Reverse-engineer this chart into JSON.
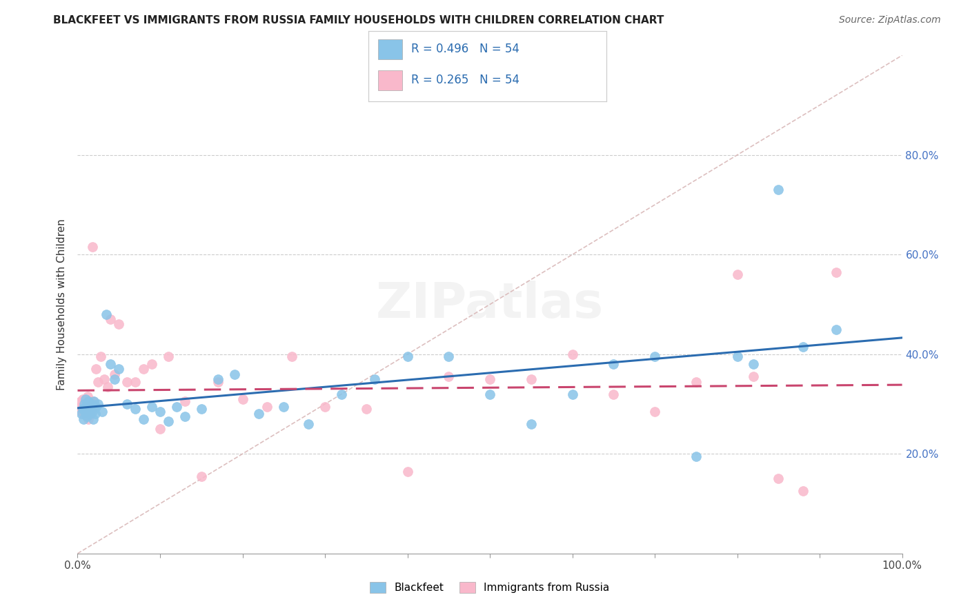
{
  "title": "BLACKFEET VS IMMIGRANTS FROM RUSSIA FAMILY HOUSEHOLDS WITH CHILDREN CORRELATION CHART",
  "source": "Source: ZipAtlas.com",
  "ylabel": "Family Households with Children",
  "legend_label1": "Blackfeet",
  "legend_label2": "Immigrants from Russia",
  "R1": 0.496,
  "N1": 54,
  "R2": 0.265,
  "N2": 54,
  "color_bf": "#89c4e8",
  "color_ru": "#f9b8cb",
  "line_bf_color": "#2b6cb0",
  "line_ru_color": "#c9456e",
  "ref_line_color": "#d9b8b8",
  "bg_color": "#ffffff",
  "blackfeet_x": [
    0.005,
    0.006,
    0.007,
    0.008,
    0.009,
    0.01,
    0.01,
    0.011,
    0.012,
    0.013,
    0.014,
    0.015,
    0.016,
    0.017,
    0.018,
    0.019,
    0.02,
    0.021,
    0.022,
    0.025,
    0.03,
    0.035,
    0.04,
    0.045,
    0.05,
    0.06,
    0.07,
    0.08,
    0.09,
    0.1,
    0.11,
    0.12,
    0.13,
    0.15,
    0.17,
    0.19,
    0.22,
    0.25,
    0.28,
    0.32,
    0.36,
    0.4,
    0.45,
    0.5,
    0.55,
    0.6,
    0.65,
    0.7,
    0.75,
    0.8,
    0.82,
    0.85,
    0.88,
    0.92
  ],
  "blackfeet_y": [
    0.28,
    0.29,
    0.27,
    0.3,
    0.285,
    0.295,
    0.31,
    0.275,
    0.285,
    0.305,
    0.29,
    0.28,
    0.295,
    0.3,
    0.285,
    0.27,
    0.305,
    0.28,
    0.295,
    0.3,
    0.285,
    0.48,
    0.38,
    0.35,
    0.37,
    0.3,
    0.29,
    0.27,
    0.295,
    0.285,
    0.265,
    0.295,
    0.275,
    0.29,
    0.35,
    0.36,
    0.28,
    0.295,
    0.26,
    0.32,
    0.35,
    0.395,
    0.395,
    0.32,
    0.26,
    0.32,
    0.38,
    0.395,
    0.195,
    0.395,
    0.38,
    0.73,
    0.415,
    0.45
  ],
  "russia_x": [
    0.003,
    0.004,
    0.005,
    0.006,
    0.006,
    0.007,
    0.008,
    0.009,
    0.01,
    0.011,
    0.012,
    0.013,
    0.014,
    0.015,
    0.016,
    0.017,
    0.018,
    0.019,
    0.02,
    0.022,
    0.025,
    0.028,
    0.032,
    0.036,
    0.04,
    0.045,
    0.05,
    0.06,
    0.07,
    0.08,
    0.09,
    0.1,
    0.11,
    0.13,
    0.15,
    0.17,
    0.2,
    0.23,
    0.26,
    0.3,
    0.35,
    0.4,
    0.45,
    0.5,
    0.55,
    0.6,
    0.65,
    0.7,
    0.75,
    0.8,
    0.82,
    0.85,
    0.88,
    0.92
  ],
  "russia_y": [
    0.295,
    0.305,
    0.285,
    0.295,
    0.31,
    0.28,
    0.305,
    0.29,
    0.285,
    0.3,
    0.315,
    0.27,
    0.295,
    0.305,
    0.28,
    0.29,
    0.615,
    0.305,
    0.295,
    0.37,
    0.345,
    0.395,
    0.35,
    0.335,
    0.47,
    0.36,
    0.46,
    0.345,
    0.345,
    0.37,
    0.38,
    0.25,
    0.395,
    0.305,
    0.155,
    0.345,
    0.31,
    0.295,
    0.395,
    0.295,
    0.29,
    0.165,
    0.355,
    0.35,
    0.35,
    0.4,
    0.32,
    0.285,
    0.345,
    0.56,
    0.355,
    0.15,
    0.125,
    0.565
  ],
  "xlim": [
    0.0,
    1.0
  ],
  "ylim": [
    0.0,
    1.0
  ],
  "xtick_pos": [
    0.0,
    0.2,
    0.4,
    0.5,
    0.6,
    0.8,
    1.0
  ],
  "ytick_pos": [
    0.2,
    0.4,
    0.6,
    0.8
  ],
  "ytick_labels": [
    "20.0%",
    "40.0%",
    "60.0%",
    "80.0%"
  ],
  "title_fontsize": 11,
  "source_fontsize": 10,
  "axis_label_fontsize": 11,
  "tick_fontsize": 11
}
